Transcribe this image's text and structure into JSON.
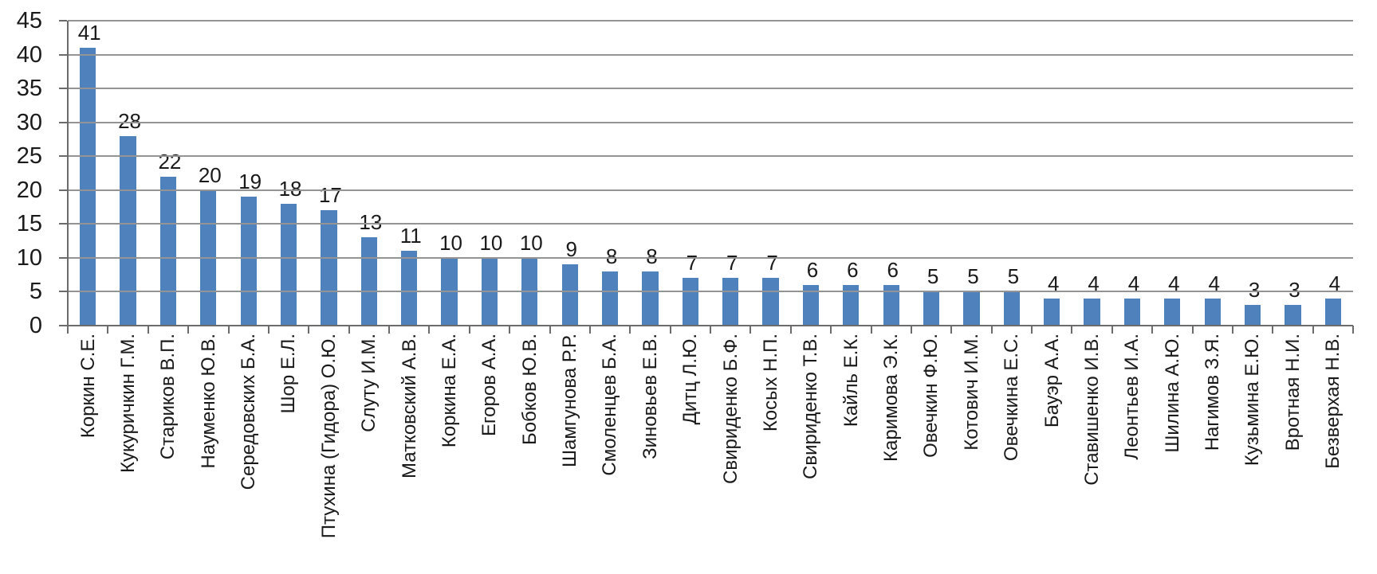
{
  "chart_data": {
    "type": "bar",
    "title": "",
    "xlabel": "",
    "ylabel": "",
    "categories": [
      "Коркин С.Е.",
      "Кукуричкин Г.М.",
      "Стариков В.П.",
      "Науменко Ю.В.",
      "Середовских Б.А.",
      "Шор Е.Л.",
      "Птухина (Гидора) О.Ю.",
      "Слуту И.М.",
      "Матковский А.В.",
      "Коркина Е.А.",
      "Егоров А.А.",
      "Бобков Ю.В.",
      "Шамгунова Р.Р.",
      "Смоленцев Б.А.",
      "Зиновьев Е.В.",
      "Дитц Л.Ю.",
      "Свириденко Б.Ф.",
      "Косых Н.П.",
      "Свириденко Т.В.",
      "Кайль Е.К.",
      "Каримова Э.К.",
      "Овечкин Ф.Ю.",
      "Котович И.М.",
      "Овечкина Е.С.",
      "Бауэр А.А.",
      "Ставишенко И.В.",
      "Леонтьев И.А.",
      "Шилина А.Ю.",
      "Нагимов З.Я.",
      "Кузьмина Е.Ю.",
      "Вротная Н.И.",
      "Безверхая Н.В."
    ],
    "values": [
      41,
      28,
      22,
      20,
      19,
      18,
      17,
      13,
      11,
      10,
      10,
      10,
      9,
      8,
      8,
      7,
      7,
      7,
      6,
      6,
      6,
      5,
      5,
      5,
      4,
      4,
      4,
      4,
      4,
      3,
      3,
      4
    ],
    "data_labels_shown": true,
    "ylim": [
      0,
      45
    ],
    "ytick_step": 5,
    "y_ticks": [
      0,
      5,
      10,
      15,
      20,
      25,
      30,
      35,
      40,
      45
    ],
    "grid": true,
    "legend_position": "none",
    "colors": {
      "bar": "#4f81bd",
      "gridline": "#949494",
      "axis": "#6b6b6b",
      "text": "#1a1a1a",
      "background": "#ffffff"
    }
  }
}
